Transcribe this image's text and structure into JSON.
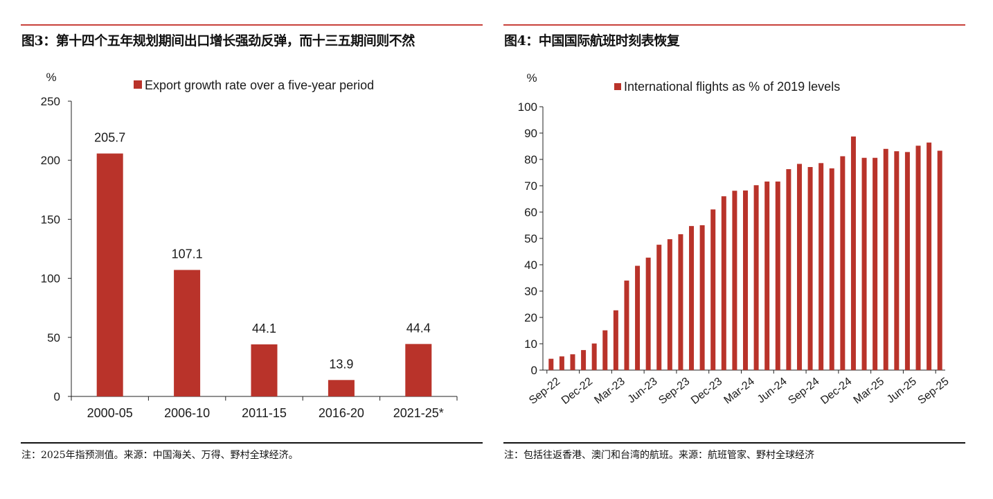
{
  "colors": {
    "bar": "#b9332a",
    "title_rule": "#c8403a",
    "axis": "#222222"
  },
  "left_panel": {
    "title": "图3：第十四个五年规划期间出口增长强劲反弹，而十三五期间则不然",
    "footnote": "注：2025年指预测值。来源：中国海关、万得、野村全球经济。"
  },
  "right_panel": {
    "title": "图4：中国国际航班时刻表恢复",
    "footnote": "注：包括往返香港、澳门和台湾的航班。来源：航班管家、野村全球经济"
  },
  "chart_data": [
    {
      "type": "bar",
      "title": "图3：第十四个五年规划期间出口增长强劲反弹，而十三五期间则不然",
      "ylabel": "%",
      "xlabel": "",
      "legend": [
        "Export growth rate over a five-year period"
      ],
      "legend_position": "top",
      "categories": [
        "2000-05",
        "2006-10",
        "2011-15",
        "2016-20",
        "2021-25*"
      ],
      "values": [
        205.7,
        107.1,
        44.1,
        13.9,
        44.4
      ],
      "data_labels": [
        "205.7",
        "107.1",
        "44.1",
        "13.9",
        "44.4"
      ],
      "ylim": [
        0,
        250
      ],
      "yticks": [
        0,
        50,
        100,
        150,
        200,
        250
      ],
      "grid": false
    },
    {
      "type": "bar",
      "title": "图4：中国国际航班时刻表恢复",
      "ylabel": "%",
      "xlabel": "",
      "legend": [
        "International flights as % of 2019 levels"
      ],
      "legend_position": "top",
      "x": [
        "Sep-22",
        "Oct-22",
        "Nov-22",
        "Dec-22",
        "Jan-23",
        "Feb-23",
        "Mar-23",
        "Apr-23",
        "May-23",
        "Jun-23",
        "Jul-23",
        "Aug-23",
        "Sep-23",
        "Oct-23",
        "Nov-23",
        "Dec-23",
        "Jan-24",
        "Feb-24",
        "Mar-24",
        "Apr-24",
        "May-24",
        "Jun-24",
        "Jul-24",
        "Aug-24",
        "Sep-24",
        "Oct-24",
        "Nov-24",
        "Dec-24",
        "Jan-25",
        "Feb-25",
        "Mar-25",
        "Apr-25",
        "May-25",
        "Jun-25",
        "Jul-25",
        "Aug-25",
        "Sep-25"
      ],
      "values": [
        4.3,
        5.2,
        6.0,
        7.6,
        10.1,
        15.1,
        22.7,
        34.0,
        39.6,
        42.7,
        47.6,
        49.7,
        51.6,
        54.7,
        55.0,
        61.0,
        66.0,
        68.1,
        68.2,
        70.2,
        71.6,
        71.6,
        76.3,
        78.3,
        77.1,
        78.6,
        76.6,
        81.2,
        88.7,
        80.6,
        80.6,
        84.0,
        83.1,
        82.8,
        85.2,
        86.4,
        83.3
      ],
      "xtick_labels": [
        "Sep-22",
        "Dec-22",
        "Mar-23",
        "Jun-23",
        "Sep-23",
        "Dec-23",
        "Mar-24",
        "Jun-24",
        "Sep-24",
        "Dec-24",
        "Mar-25",
        "Jun-25",
        "Sep-25"
      ],
      "ylim": [
        0,
        100
      ],
      "yticks": [
        0,
        10,
        20,
        30,
        40,
        50,
        60,
        70,
        80,
        90,
        100
      ],
      "grid": false
    }
  ]
}
